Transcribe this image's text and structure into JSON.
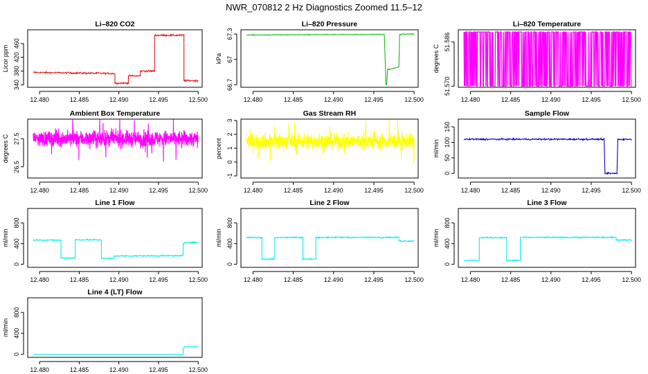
{
  "title": "NWR_070812  2 Hz Diagnostics Zoomed 11.5–12",
  "chart_data": [
    {
      "type": "line",
      "title": "Li–820 CO2",
      "ylabel": "Licor ppm",
      "color": "#e31a1c",
      "xticks": [
        12.48,
        12.485,
        12.49,
        12.495,
        12.5
      ],
      "yticks": [
        340,
        380,
        420,
        460
      ],
      "ylim": [
        333,
        500
      ],
      "xlim": [
        12.4785,
        12.5005
      ],
      "noise": 1.2,
      "series": [
        {
          "x": [
            12.4792,
            12.4895,
            12.4895,
            12.4912,
            12.4912,
            12.4927,
            12.4927,
            12.4945,
            12.4945,
            12.4982,
            12.4982,
            12.5
          ],
          "y": [
            376,
            373,
            345,
            345,
            366,
            366,
            380,
            380,
            484,
            484,
            352,
            352
          ]
        }
      ]
    },
    {
      "type": "line",
      "title": "Li–820 Pressure",
      "ylabel": "kPa",
      "color": "#1cb51c",
      "xticks": [
        12.48,
        12.485,
        12.49,
        12.495,
        12.5
      ],
      "yticks": [
        66.7,
        67.0,
        67.3
      ],
      "ylim": [
        66.67,
        67.35
      ],
      "xlim": [
        12.4785,
        12.5005
      ],
      "noise": 0.002,
      "series": [
        {
          "x": [
            12.4792,
            12.488,
            12.4963,
            12.4965,
            12.4966,
            12.4967,
            12.4969,
            12.4981,
            12.4982,
            12.4985,
            12.5
          ],
          "y": [
            67.288,
            67.292,
            67.295,
            66.7,
            66.7,
            66.88,
            66.88,
            66.91,
            67.29,
            67.3,
            67.3
          ]
        }
      ]
    },
    {
      "type": "line",
      "title": "Li–820 Temperature",
      "ylabel": "degrees C",
      "color": "#ff00ff",
      "xticks": [
        12.48,
        12.485,
        12.49,
        12.495,
        12.5
      ],
      "yticks": [
        51.57,
        51.586
      ],
      "ytick_labels": [
        "51.570",
        "51.586"
      ],
      "ylim": [
        51.5696,
        51.5904
      ],
      "xlim": [
        12.4785,
        12.5005
      ],
      "series": [
        {
          "pattern": "binary",
          "levels": [
            51.57,
            51.5896
          ],
          "x_start": 12.4792,
          "x_end": 12.5,
          "rate": 0.55
        }
      ]
    },
    {
      "type": "line",
      "title": "Ambient Box Temperature",
      "ylabel": "degrees C",
      "color": "#ff00ff",
      "xticks": [
        12.48,
        12.485,
        12.49,
        12.495,
        12.5
      ],
      "yticks": [
        26.5,
        27.5
      ],
      "ytick_labels": [
        "26.5",
        "27.5"
      ],
      "ylim": [
        26.1,
        28.2
      ],
      "xlim": [
        12.4785,
        12.5005
      ],
      "series": [
        {
          "pattern": "noise",
          "center": 27.5,
          "spread": 0.28,
          "x_start": 12.4792,
          "x_end": 12.5
        }
      ]
    },
    {
      "type": "line",
      "title": "Gas Stream RH",
      "ylabel": "percent",
      "color": "#ffff00",
      "xticks": [
        12.48,
        12.485,
        12.49,
        12.495,
        12.5
      ],
      "yticks": [
        -1,
        0,
        1,
        2,
        3
      ],
      "ylim": [
        -1.15,
        3.1
      ],
      "xlim": [
        12.4785,
        12.5005
      ],
      "series": [
        {
          "pattern": "noise",
          "center": 1.5,
          "spread": 0.55,
          "x_start": 12.4792,
          "x_end": 12.5
        }
      ]
    },
    {
      "type": "line",
      "title": "Sample Flow",
      "ylabel": "ml/min",
      "color": "#0000cc",
      "xticks": [
        12.48,
        12.485,
        12.49,
        12.495,
        12.5
      ],
      "yticks": [
        0,
        50,
        100,
        150
      ],
      "ylim": [
        -15,
        175
      ],
      "xlim": [
        12.4785,
        12.5005
      ],
      "noise": 1.2,
      "series": [
        {
          "x": [
            12.4792,
            12.4966,
            12.4967,
            12.4982,
            12.4983,
            12.5
          ],
          "y": [
            110,
            110,
            0,
            0,
            110,
            110
          ]
        }
      ]
    },
    {
      "type": "line",
      "title": "Line 1 Flow",
      "ylabel": "ml/min",
      "color": "#00eeee",
      "xticks": [
        12.48,
        12.485,
        12.49,
        12.495,
        12.5
      ],
      "yticks": [
        0,
        400,
        800
      ],
      "ylim": [
        -60,
        1080
      ],
      "xlim": [
        12.4785,
        12.5005
      ],
      "noise": 6,
      "series": [
        {
          "x": [
            12.4792,
            12.4827,
            12.4827,
            12.4845,
            12.4845,
            12.4878,
            12.4878,
            12.4894,
            12.4894,
            12.4981,
            12.4981,
            12.4983,
            12.5
          ],
          "y": [
            470,
            465,
            120,
            120,
            475,
            470,
            115,
            115,
            160,
            165,
            380,
            420,
            420
          ]
        }
      ]
    },
    {
      "type": "line",
      "title": "Line 2 Flow",
      "ylabel": "ml/min",
      "color": "#00eeee",
      "xticks": [
        12.48,
        12.485,
        12.49,
        12.495,
        12.5
      ],
      "yticks": [
        0,
        400,
        800
      ],
      "ylim": [
        -60,
        1080
      ],
      "xlim": [
        12.4785,
        12.5005
      ],
      "noise": 6,
      "series": [
        {
          "x": [
            12.4792,
            12.4811,
            12.4811,
            12.4827,
            12.4827,
            12.4862,
            12.4862,
            12.4878,
            12.4878,
            12.4981,
            12.4981,
            12.5
          ],
          "y": [
            520,
            515,
            100,
            100,
            520,
            520,
            100,
            100,
            520,
            520,
            450,
            450
          ]
        }
      ]
    },
    {
      "type": "line",
      "title": "Line 3 Flow",
      "ylabel": "ml/min",
      "color": "#00eeee",
      "xticks": [
        12.48,
        12.485,
        12.49,
        12.495,
        12.5
      ],
      "yticks": [
        0,
        400,
        800
      ],
      "ylim": [
        -60,
        1080
      ],
      "xlim": [
        12.4785,
        12.5005
      ],
      "noise": 6,
      "series": [
        {
          "x": [
            12.4792,
            12.4811,
            12.4811,
            12.4845,
            12.4845,
            12.4862,
            12.4862,
            12.4981,
            12.4981,
            12.5
          ],
          "y": [
            75,
            75,
            515,
            515,
            75,
            75,
            520,
            520,
            470,
            470
          ]
        }
      ]
    },
    {
      "type": "line",
      "title": "Line 4 (LT) Flow",
      "ylabel": "ml/min",
      "color": "#00eeee",
      "xticks": [
        12.48,
        12.485,
        12.49,
        12.495,
        12.5
      ],
      "yticks": [
        0,
        400,
        800
      ],
      "ylim": [
        -60,
        1080
      ],
      "xlim": [
        12.4785,
        12.5005
      ],
      "noise": 0,
      "series": [
        {
          "x": [
            12.4792,
            12.4981,
            12.4981,
            12.4983,
            12.5
          ],
          "y": [
            0,
            0,
            80,
            150,
            150
          ]
        }
      ]
    }
  ]
}
